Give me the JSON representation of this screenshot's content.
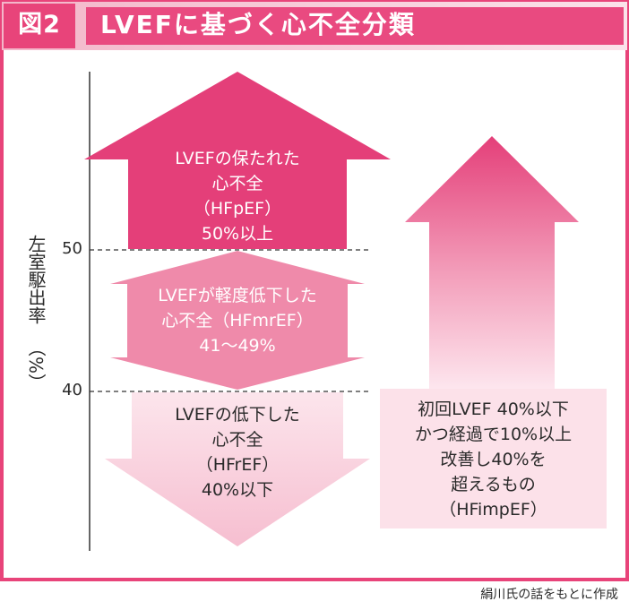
{
  "figure_label": "図2",
  "title": "LVEFに基づく心不全分類",
  "y_axis": {
    "label": "左室駆出率",
    "unit": "（%）",
    "ticks": [
      "50",
      "40"
    ]
  },
  "categories": {
    "hfpef": {
      "lines": [
        "LVEFの保たれた",
        "心不全",
        "（HFpEF）",
        "50%以上"
      ]
    },
    "hfmref": {
      "lines": [
        "LVEFが軽度低下した",
        "心不全（HFmrEF）",
        "41～49%"
      ]
    },
    "hfref": {
      "lines": [
        "LVEFの低下した",
        "心不全",
        "（HFrEF）",
        "40%以下"
      ]
    },
    "hfimpef": {
      "lines": [
        "初回LVEF 40%以下",
        "かつ経過で10%以上",
        "改善し40%を",
        "超えるもの",
        "（HFimpEF）"
      ]
    }
  },
  "source": "絹川氏の話をもとに作成",
  "colors": {
    "frame": "#e8447a",
    "header_bg": "#f6c9d6",
    "hfpef": "#e43f79",
    "hfmref": "#ef8aaa",
    "hfref": "#fbd9e3",
    "hfimpef_box": "#fce1e9"
  }
}
